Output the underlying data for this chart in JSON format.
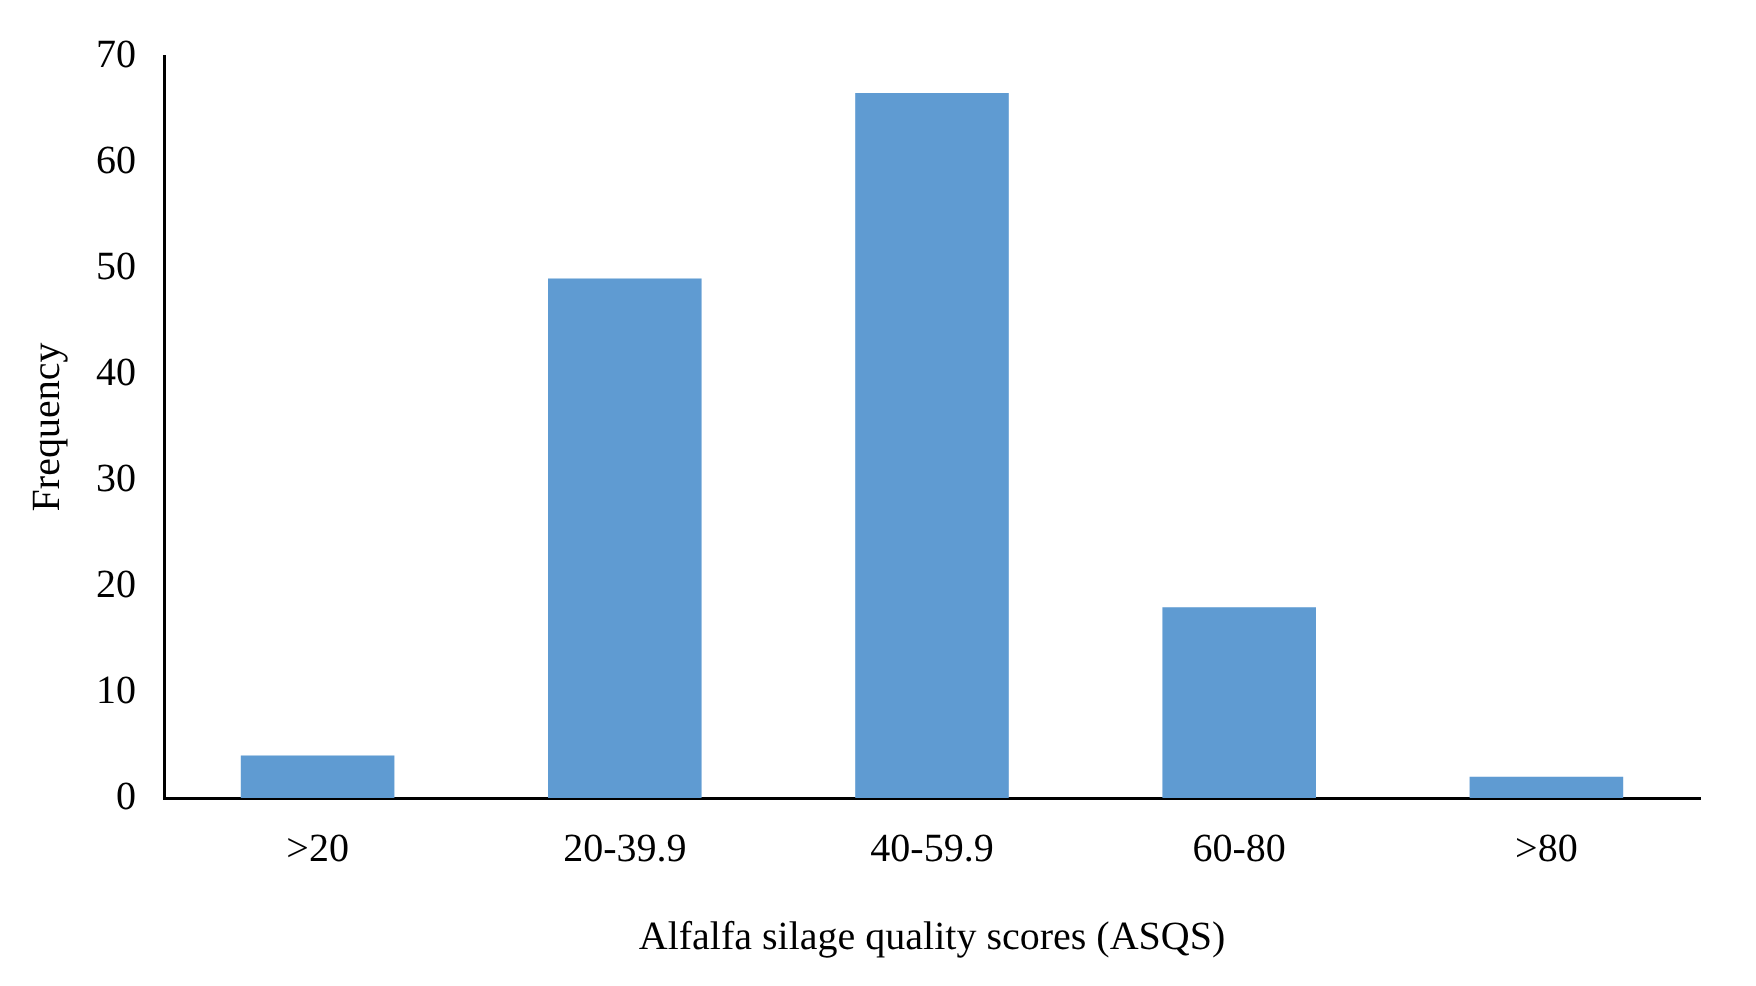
{
  "chart_data": {
    "type": "bar",
    "xlabel": "Alfalfa silage quality scores (ASQS)",
    "ylabel": "Frequency",
    "categories": [
      ">20",
      "20-39.9",
      "40-59.9",
      "60-80",
      ">80"
    ],
    "values": [
      4,
      49,
      66.5,
      18,
      2
    ],
    "color": "#5f9bd2",
    "ylim": [
      0,
      70
    ],
    "yticks": [
      0,
      10,
      20,
      30,
      40,
      50,
      60,
      70
    ],
    "grid": false,
    "legend": false
  }
}
